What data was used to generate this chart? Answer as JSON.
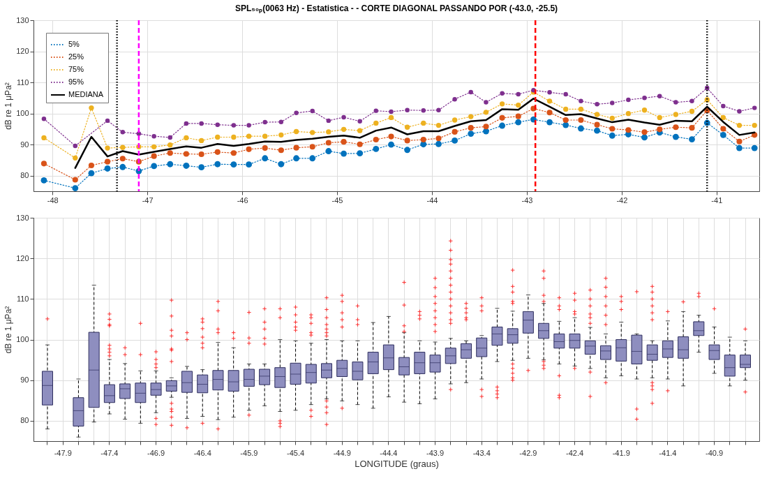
{
  "chart_data": [
    {
      "type": "line",
      "title": "SPL₅₀ₚ(0063 Hz) - Estatistica -  - CORTE DIAGONAL PASSANDO POR (-43.0, -25.5)",
      "x": [
        -48.09,
        -47.92,
        -47.76,
        -47.59,
        -47.42,
        -47.26,
        -47.09,
        -46.93,
        -46.76,
        -46.59,
        -46.43,
        -46.26,
        -46.09,
        -45.93,
        -45.76,
        -45.59,
        -45.43,
        -45.26,
        -45.09,
        -44.93,
        -44.76,
        -44.59,
        -44.43,
        -44.26,
        -44.09,
        -43.93,
        -43.76,
        -43.59,
        -43.43,
        -43.26,
        -43.09,
        -42.93,
        -42.76,
        -42.59,
        -42.43,
        -42.26,
        -42.1,
        -41.93,
        -41.76,
        -41.6,
        -41.43,
        -41.26,
        -41.1,
        -40.93,
        -40.76,
        -40.6
      ],
      "series": [
        {
          "name": "5%",
          "color": "#0072bd",
          "line_style": "dotted",
          "marker": "circle",
          "values": [
            78.5,
            null,
            76.0,
            80.8,
            82.3,
            82.8,
            81.5,
            83.1,
            83.7,
            83.2,
            82.7,
            83.7,
            83.6,
            83.6,
            85.6,
            83.7,
            85.6,
            85.6,
            87.9,
            87.1,
            87.2,
            88.6,
            90.0,
            88.3,
            90.1,
            90.2,
            91.3,
            93.5,
            94.3,
            96.1,
            97.2,
            98.1,
            97.2,
            96.3,
            95.2,
            94.5,
            92.9,
            93.3,
            92.3,
            93.9,
            92.5,
            91.7,
            97.0,
            93.1,
            88.9,
            88.9
          ]
        },
        {
          "name": "25%",
          "color": "#d95319",
          "line_style": "dotted",
          "marker": "circle",
          "values": [
            83.9,
            null,
            78.7,
            83.3,
            84.5,
            85.5,
            84.5,
            86.3,
            87.3,
            87.0,
            86.9,
            87.6,
            87.3,
            88.5,
            88.9,
            88.2,
            89.0,
            89.3,
            90.6,
            90.9,
            90.1,
            91.6,
            92.6,
            91.3,
            91.6,
            92.0,
            94.1,
            95.4,
            95.8,
            98.6,
            99.1,
            101.6,
            100.3,
            97.9,
            97.9,
            96.4,
            95.1,
            94.7,
            94.0,
            94.9,
            95.6,
            95.4,
            101.0,
            95.1,
            91.0,
            93.1
          ]
        },
        {
          "name": "75%",
          "color": "#edb120",
          "line_style": "dotted",
          "marker": "circle",
          "values": [
            92.2,
            null,
            85.7,
            101.8,
            88.9,
            89.1,
            89.3,
            89.3,
            89.9,
            92.2,
            91.3,
            92.4,
            92.4,
            92.7,
            92.7,
            93.1,
            94.2,
            93.9,
            94.1,
            94.9,
            94.5,
            96.9,
            98.7,
            95.6,
            96.9,
            96.2,
            97.9,
            99.0,
            100.4,
            103.1,
            102.7,
            106.9,
            104.0,
            101.4,
            101.4,
            99.7,
            98.5,
            100.0,
            101.1,
            98.7,
            99.7,
            100.7,
            104.4,
            98.7,
            96.2,
            96.2
          ]
        },
        {
          "name": "95%",
          "color": "#7e2f8e",
          "line_style": "dotted",
          "marker": "circle",
          "values": [
            98.3,
            null,
            89.6,
            null,
            97.7,
            94.0,
            93.5,
            92.7,
            92.3,
            96.8,
            96.8,
            96.4,
            96.2,
            96.2,
            97.2,
            97.3,
            100.2,
            100.8,
            97.7,
            98.8,
            97.5,
            100.9,
            100.6,
            101.1,
            101.0,
            101.1,
            104.6,
            106.9,
            103.6,
            106.5,
            106.2,
            107.5,
            106.8,
            106.2,
            104.0,
            103.0,
            103.4,
            104.4,
            105.0,
            105.6,
            103.6,
            104.0,
            108.2,
            102.4,
            100.7,
            101.8
          ]
        },
        {
          "name": "MEDIANA",
          "color": "#000000",
          "line_style": "solid",
          "values": [
            null,
            null,
            82.5,
            92.5,
            86.2,
            87.9,
            86.8,
            87.7,
            88.6,
            89.4,
            89.0,
            90.2,
            89.6,
            90.2,
            91.0,
            90.9,
            91.5,
            91.9,
            92.5,
            92.9,
            92.2,
            94.5,
            95.5,
            93.3,
            94.3,
            94.3,
            96.0,
            97.5,
            97.9,
            101.4,
            101.2,
            104.8,
            102.2,
            99.5,
            99.8,
            98.4,
            97.2,
            98.0,
            97.1,
            96.4,
            97.7,
            97.5,
            102.2,
            97.3,
            93.1,
            93.9
          ]
        }
      ],
      "xlim": [
        -48.2,
        -40.55
      ],
      "xticks": [
        -48,
        -47,
        -46,
        -45,
        -44,
        -43,
        -42,
        -41
      ],
      "ylim": [
        75,
        130
      ],
      "yticks": [
        80,
        90,
        100,
        110,
        120,
        130
      ],
      "ylabel": "dB re 1 μPa²",
      "legend": "top left",
      "grid": true,
      "ref_lines": [
        {
          "axis": "x",
          "value": -47.32,
          "color": "#000000",
          "line_style": "dotted"
        },
        {
          "axis": "x",
          "value": -47.09,
          "color": "#ff00ff",
          "line_style": "dashed"
        },
        {
          "axis": "x",
          "value": -42.91,
          "color": "#ff0000",
          "line_style": "dashed"
        },
        {
          "axis": "x",
          "value": -41.1,
          "color": "#000000",
          "line_style": "dotted"
        }
      ]
    },
    {
      "type": "box",
      "categories": [
        null,
        "-47.9",
        null,
        null,
        "-47.4",
        null,
        null,
        "-46.9",
        null,
        null,
        "-46.4",
        null,
        null,
        "-45.9",
        null,
        null,
        "-45.4",
        null,
        null,
        "-44.9",
        null,
        null,
        "-44.4",
        null,
        null,
        "-43.9",
        null,
        null,
        "-43.4",
        null,
        null,
        "-42.9",
        null,
        null,
        "-42.4",
        null,
        null,
        "-41.9",
        null,
        null,
        "-41.4",
        null,
        null,
        "-40.9",
        null,
        null
      ],
      "series": [
        {
          "color": "#8e8ebf",
          "boxes": [
            {
              "low": 78.0,
              "q1": 83.9,
              "median": 88.7,
              "q3": 92.2,
              "high": 98.7,
              "outliers": [
                105.1
              ]
            },
            null,
            {
              "low": 76.0,
              "q1": 78.7,
              "median": 82.5,
              "q3": 85.7,
              "high": 90.3
            },
            {
              "low": 79.7,
              "q1": 83.3,
              "median": 92.5,
              "q3": 101.8,
              "high": 113.4
            },
            {
              "low": 81.7,
              "q1": 84.5,
              "median": 86.2,
              "q3": 88.9,
              "high": 95.1,
              "outliers": [
                106.3,
                105.0,
                103.7,
                103.4,
                98.6,
                97.7,
                96.9,
                96.0
              ]
            },
            {
              "low": 80.4,
              "q1": 85.5,
              "median": 87.9,
              "q3": 89.1,
              "high": 94.1,
              "outliers": [
                98.0,
                96.3
              ]
            },
            {
              "low": 79.4,
              "q1": 84.5,
              "median": 86.8,
              "q3": 89.3,
              "high": 92.3,
              "outliers": [
                104.0,
                96.3
              ]
            },
            {
              "low": 82.0,
              "q1": 86.3,
              "median": 87.7,
              "q3": 89.3,
              "high": 92.3,
              "outliers": [
                97.0,
                95.1,
                94.0,
                93.1,
                80.6,
                79.1
              ]
            },
            {
              "low": 85.8,
              "q1": 87.3,
              "median": 88.6,
              "q3": 89.9,
              "high": 90.6,
              "outliers": [
                109.7,
                105.8,
                102.3,
                100.9,
                97.7,
                97.4,
                94.6,
                84.3,
                82.9,
                82.3,
                80.9,
                78.9
              ]
            },
            {
              "low": 80.6,
              "q1": 87.0,
              "median": 89.4,
              "q3": 92.2,
              "high": 93.4,
              "outliers": [
                101.7,
                100.0,
                78.3
              ]
            },
            {
              "low": 81.1,
              "q1": 86.9,
              "median": 89.0,
              "q3": 91.3,
              "high": 92.6,
              "outliers": [
                105.1,
                104.3,
                102.7,
                100.6,
                99.1,
                98.0,
                79.4
              ]
            },
            {
              "low": 80.3,
              "q1": 87.6,
              "median": 90.2,
              "q3": 92.4,
              "high": 99.3,
              "outliers": [
                109.4,
                107.1,
                102.6,
                101.7,
                78.0
              ]
            },
            {
              "low": 80.9,
              "q1": 87.3,
              "median": 89.6,
              "q3": 92.4,
              "high": 98.0,
              "outliers": [
                101.7,
                100.3
              ]
            },
            {
              "low": 82.6,
              "q1": 88.5,
              "median": 90.2,
              "q3": 92.7,
              "high": 94.0,
              "outliers": [
                106.7,
                100.4,
                99.1,
                81.4
              ]
            },
            {
              "low": 83.7,
              "q1": 88.9,
              "median": 91.0,
              "q3": 92.7,
              "high": 94.0,
              "outliers": [
                107.6,
                104.3,
                102.6,
                100.3,
                98.9
              ]
            },
            {
              "low": 82.3,
              "q1": 88.2,
              "median": 90.9,
              "q3": 93.1,
              "high": 100.0,
              "outliers": [
                107.6,
                105.4,
                80.0,
                79.4,
                78.6
              ]
            },
            {
              "low": 82.6,
              "q1": 89.0,
              "median": 91.5,
              "q3": 94.2,
              "high": 99.7,
              "outliers": [
                108.0,
                106.1,
                104.3,
                103.1,
                102.3
              ]
            },
            {
              "low": 84.0,
              "q1": 89.3,
              "median": 91.9,
              "q3": 93.9,
              "high": 99.1,
              "outliers": [
                106.1,
                105.4,
                104.0,
                101.7,
                101.1,
                82.6,
                81.1
              ]
            },
            {
              "low": 85.4,
              "q1": 90.6,
              "median": 92.5,
              "q3": 94.1,
              "high": 100.0,
              "outliers": [
                110.3,
                107.4,
                105.4,
                103.7,
                102.6,
                101.7,
                100.9,
                84.9,
                83.4,
                82.0,
                79.1
              ]
            },
            {
              "low": 84.9,
              "q1": 90.9,
              "median": 92.9,
              "q3": 94.9,
              "high": 99.7,
              "outliers": [
                110.9,
                109.4,
                106.6,
                104.9,
                103.1,
                83.1
              ]
            },
            {
              "low": 84.0,
              "q1": 90.1,
              "median": 92.2,
              "q3": 94.5,
              "high": 99.7,
              "outliers": [
                108.3,
                104.9,
                103.7
              ]
            },
            {
              "low": 83.1,
              "q1": 91.6,
              "median": 94.5,
              "q3": 96.9,
              "high": 104.2
            },
            {
              "low": 85.9,
              "q1": 92.6,
              "median": 95.5,
              "q3": 98.7,
              "high": 105.7
            },
            {
              "low": 84.6,
              "q1": 91.3,
              "median": 93.3,
              "q3": 95.6,
              "high": 101.7,
              "outliers": [
                114.1,
                108.5,
                103.4,
                102.0
              ]
            },
            {
              "low": 84.2,
              "q1": 91.6,
              "median": 94.3,
              "q3": 96.9,
              "high": 99.7,
              "outliers": [
                106.9,
                106.0,
                105.1
              ]
            },
            {
              "low": 85.4,
              "q1": 92.0,
              "median": 94.3,
              "q3": 96.2,
              "high": 99.4,
              "outliers": [
                115.1,
                112.8,
                110.6,
                108.9,
                107.1,
                105.4,
                103.7,
                102.0
              ]
            },
            {
              "low": 89.1,
              "q1": 94.1,
              "median": 96.0,
              "q3": 97.9,
              "high": 100.3,
              "outliers": [
                124.3,
                122.0,
                119.7,
                118.6,
                116.9,
                115.1,
                113.4,
                111.7,
                110.0,
                108.3,
                106.6,
                104.9,
                104.0,
                87.7
              ]
            },
            {
              "low": 89.4,
              "q1": 95.4,
              "median": 97.5,
              "q3": 99.0,
              "high": 99.7,
              "outliers": [
                108.9,
                107.7,
                106.6,
                105.4,
                104.9
              ]
            },
            {
              "low": 90.3,
              "q1": 95.8,
              "median": 97.9,
              "q3": 100.4,
              "high": 101.0,
              "outliers": [
                110.3,
                108.3,
                107.1,
                87.7,
                86.0
              ]
            },
            {
              "low": 94.6,
              "q1": 98.6,
              "median": 101.4,
              "q3": 103.1,
              "high": 107.7,
              "outliers": [
                88.3,
                87.4,
                86.6,
                85.7
              ]
            },
            {
              "low": 94.9,
              "q1": 99.1,
              "median": 101.2,
              "q3": 102.7,
              "high": 107.0,
              "outliers": [
                117.1,
                113.1,
                111.7,
                109.4,
                108.9,
                94.0,
                92.9,
                91.7,
                90.6,
                90.0
              ]
            },
            {
              "low": 95.4,
              "q1": 101.6,
              "median": 104.8,
              "q3": 106.9,
              "high": 111.0,
              "outliers": [
                92.4
              ]
            },
            {
              "low": 95.0,
              "q1": 100.3,
              "median": 102.2,
              "q3": 104.0,
              "high": 108.9,
              "outliers": [
                116.9,
                115.1,
                110.9,
                109.4,
                94.6,
                93.7,
                92.9
              ]
            },
            {
              "low": 94.0,
              "q1": 97.9,
              "median": 99.5,
              "q3": 101.4,
              "high": 104.5,
              "outliers": [
                110.3,
                108.3,
                107.4,
                91.1,
                86.3,
                85.7
              ]
            },
            {
              "low": 93.5,
              "q1": 97.9,
              "median": 99.8,
              "q3": 101.4,
              "high": 105.4,
              "outliers": [
                111.4,
                109.7,
                106.9,
                106.3,
                92.9
              ]
            },
            {
              "low": 92.9,
              "q1": 96.4,
              "median": 98.4,
              "q3": 99.7,
              "high": 103.0,
              "outliers": [
                112.2,
                110.0,
                108.3,
                106.3,
                105.4,
                104.0,
                92.0,
                86.0
              ]
            },
            {
              "low": 90.6,
              "q1": 95.1,
              "median": 97.2,
              "q3": 98.5,
              "high": 101.4,
              "outliers": [
                115.1,
                112.9,
                110.6,
                108.3,
                106.0,
                103.7,
                89.4
              ]
            },
            {
              "low": 91.1,
              "q1": 94.7,
              "median": 98.0,
              "q3": 100.0,
              "high": 104.3,
              "outliers": [
                110.6,
                109.4,
                107.4
              ]
            },
            {
              "low": 90.3,
              "q1": 94.0,
              "median": 97.1,
              "q3": 101.1,
              "high": 101.4,
              "outliers": [
                111.8,
                82.9,
                80.4
              ]
            },
            {
              "low": 90.6,
              "q1": 94.9,
              "median": 96.4,
              "q3": 98.7,
              "high": 99.7,
              "outliers": [
                113.1,
                111.7,
                110.0,
                108.3,
                106.6,
                104.9,
                89.4,
                88.6,
                87.7,
                84.3
              ]
            },
            {
              "low": 90.3,
              "q1": 95.6,
              "median": 97.7,
              "q3": 99.7,
              "high": 104.6,
              "outliers": [
                106.9,
                87.4
              ]
            },
            {
              "low": 88.6,
              "q1": 95.4,
              "median": 97.5,
              "q3": 100.7,
              "high": 106.9,
              "outliers": [
                109.3
              ]
            },
            {
              "low": 96.9,
              "q1": 101.0,
              "median": 102.2,
              "q3": 104.4,
              "high": 106.0,
              "outliers": [
                111.4,
                110.6
              ]
            },
            {
              "low": 91.7,
              "q1": 95.1,
              "median": 97.3,
              "q3": 98.7,
              "high": 103.1,
              "outliers": [
                107.6
              ]
            },
            {
              "low": 88.6,
              "q1": 91.0,
              "median": 93.1,
              "q3": 96.2,
              "high": 100.6
            },
            {
              "low": 90.0,
              "q1": 93.1,
              "median": 93.9,
              "q3": 96.2,
              "high": 99.7,
              "outliers": [
                102.6,
                87.1
              ]
            }
          ]
        }
      ],
      "ylim": [
        75,
        130
      ],
      "yticks": [
        80,
        90,
        100,
        110,
        120,
        130
      ],
      "ylabel": "dB re 1 μPa²",
      "xlabel": "LONGITUDE (graus)",
      "grid": true
    }
  ]
}
